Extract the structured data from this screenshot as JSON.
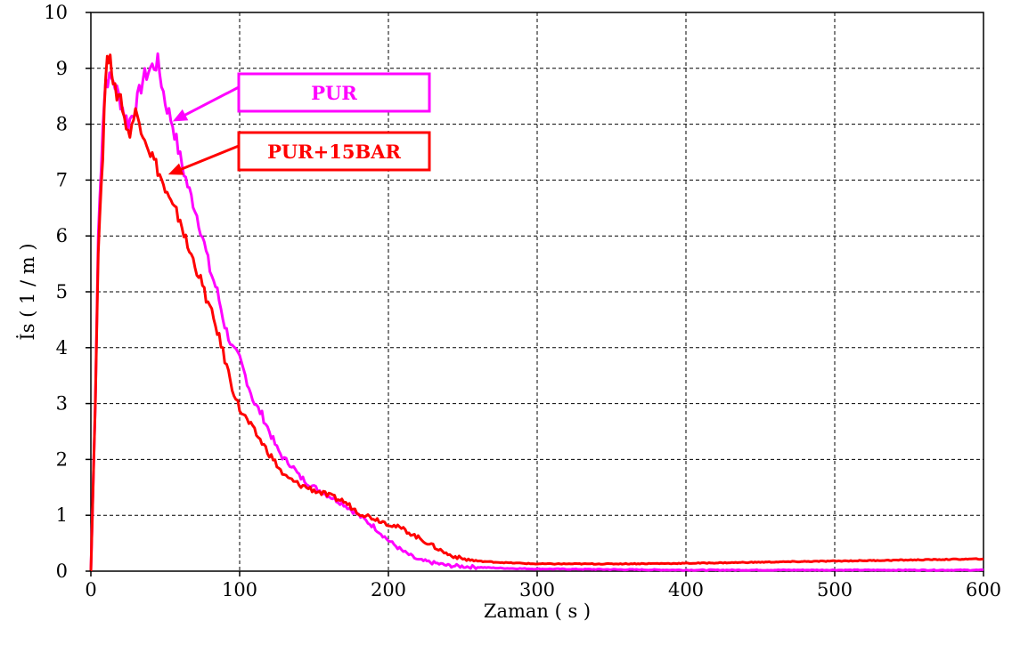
{
  "chart_data": {
    "type": "line",
    "title": "",
    "xlabel": "Zaman ( s )",
    "ylabel": "İs ( 1 / m )",
    "xlim": [
      0,
      600
    ],
    "ylim": [
      0,
      10
    ],
    "xticks": [
      0,
      100,
      200,
      300,
      400,
      500,
      600
    ],
    "yticks": [
      0,
      1,
      2,
      3,
      4,
      5,
      6,
      7,
      8,
      9,
      10
    ],
    "grid": true,
    "series": [
      {
        "name": "PUR",
        "color": "#ff00ff",
        "x": [
          0,
          3,
          5,
          8,
          10,
          15,
          20,
          25,
          30,
          35,
          40,
          45,
          50,
          55,
          60,
          65,
          70,
          75,
          80,
          85,
          90,
          95,
          100,
          105,
          110,
          115,
          120,
          125,
          130,
          135,
          140,
          150,
          160,
          170,
          180,
          190,
          200,
          210,
          220,
          240,
          260,
          280,
          300,
          350,
          400,
          450,
          500,
          550,
          600
        ],
        "y": [
          0,
          3.0,
          6.0,
          8.0,
          8.8,
          8.8,
          8.4,
          8.0,
          8.3,
          8.8,
          9.0,
          9.1,
          8.4,
          8.0,
          7.4,
          6.9,
          6.5,
          6.0,
          5.4,
          5.0,
          4.4,
          4.0,
          3.8,
          3.4,
          3.0,
          2.8,
          2.5,
          2.2,
          2.0,
          1.9,
          1.7,
          1.5,
          1.35,
          1.2,
          1.0,
          0.8,
          0.55,
          0.35,
          0.2,
          0.1,
          0.07,
          0.05,
          0.04,
          0.03,
          0.02,
          0.02,
          0.02,
          0.02,
          0.02
        ]
      },
      {
        "name": "PUR+15BAR",
        "color": "#ff0000",
        "x": [
          0,
          3,
          5,
          8,
          10,
          13,
          15,
          20,
          25,
          30,
          35,
          40,
          45,
          50,
          55,
          60,
          65,
          70,
          75,
          80,
          85,
          90,
          95,
          100,
          110,
          120,
          130,
          140,
          150,
          160,
          170,
          180,
          190,
          200,
          210,
          220,
          230,
          240,
          250,
          260,
          280,
          300,
          350,
          400,
          450,
          500,
          550,
          600
        ],
        "y": [
          0,
          3.0,
          5.8,
          7.5,
          8.9,
          9.4,
          8.6,
          8.5,
          7.8,
          8.2,
          7.9,
          7.5,
          7.2,
          6.8,
          6.5,
          6.3,
          5.8,
          5.5,
          5.1,
          4.7,
          4.3,
          3.8,
          3.3,
          2.9,
          2.5,
          2.1,
          1.7,
          1.55,
          1.45,
          1.35,
          1.25,
          1.05,
          0.95,
          0.85,
          0.75,
          0.6,
          0.45,
          0.3,
          0.22,
          0.18,
          0.15,
          0.13,
          0.13,
          0.14,
          0.16,
          0.18,
          0.2,
          0.22
        ]
      }
    ],
    "annotations": [
      {
        "text": "PUR",
        "target_series": "PUR",
        "arrow_to": [
          55,
          8.05
        ]
      },
      {
        "text": "PUR+15BAR",
        "target_series": "PUR+15BAR",
        "arrow_to": [
          52,
          7.1
        ]
      }
    ]
  }
}
